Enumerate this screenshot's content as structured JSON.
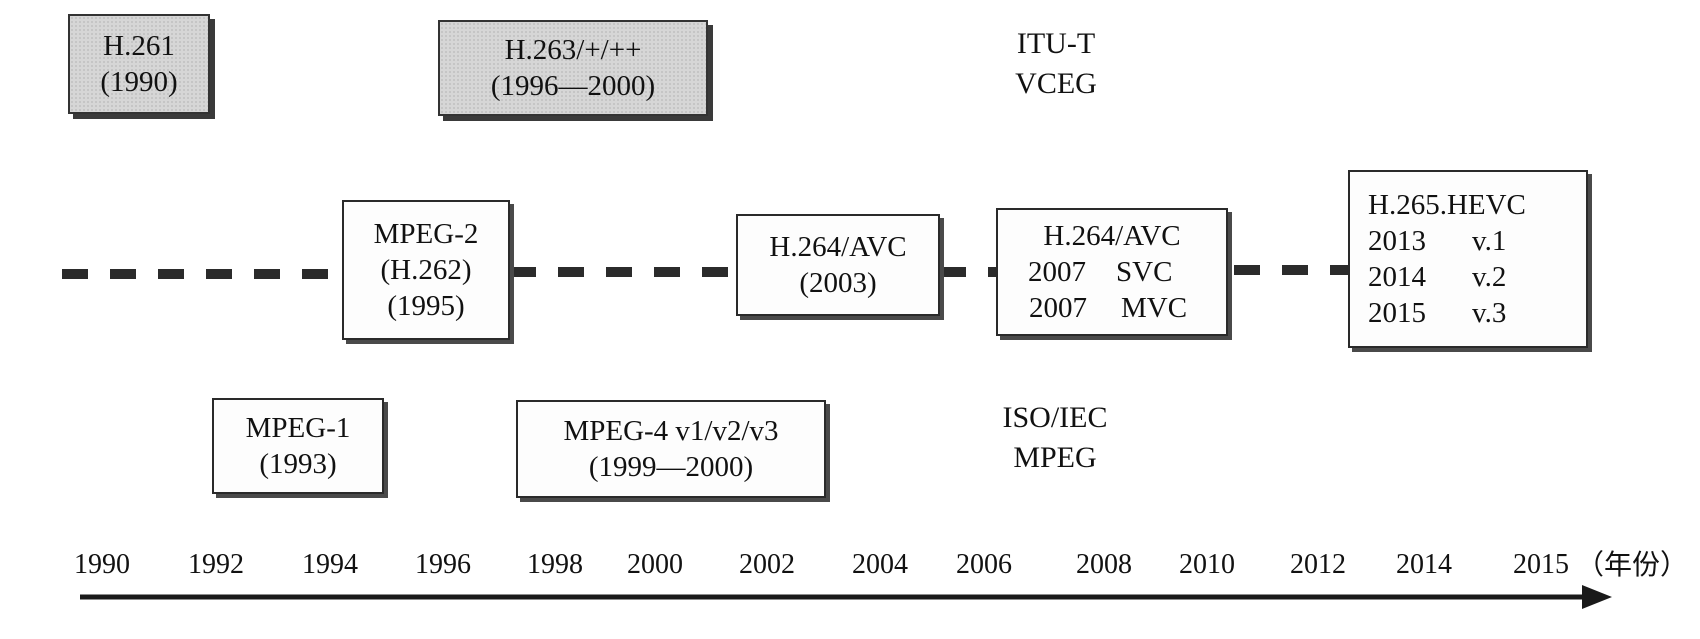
{
  "itu": {
    "line1": "ITU-T",
    "line2": "VCEG"
  },
  "iso": {
    "line1": "ISO/IEC",
    "line2": "MPEG"
  },
  "standards": {
    "h261": {
      "name": "H.261",
      "years": "(1990)"
    },
    "h263": {
      "name": "H.263/+/++",
      "years": "(1996—2000)"
    },
    "mpeg2": {
      "name": "MPEG-2",
      "alias": "(H.262)",
      "years": "(1995)"
    },
    "h264": {
      "name": "H.264/AVC",
      "years": "(2003)"
    },
    "h264ext": {
      "name": "H.264/AVC",
      "rows": [
        {
          "year": "2007",
          "label": "SVC"
        },
        {
          "year": "2007",
          "label": "MVC"
        }
      ]
    },
    "h265": {
      "name": "H.265.HEVC",
      "rows": [
        {
          "year": "2013",
          "label": "v.1"
        },
        {
          "year": "2014",
          "label": "v.2"
        },
        {
          "year": "2015",
          "label": "v.3"
        }
      ]
    },
    "mpeg1": {
      "name": "MPEG-1",
      "years": "(1993)"
    },
    "mpeg4": {
      "name": "MPEG-4 v1/v2/v3",
      "years": "(1999—2000)"
    }
  },
  "axis": {
    "ticks": [
      "1990",
      "1992",
      "1994",
      "1996",
      "1998",
      "2000",
      "2002",
      "2004",
      "2006",
      "2008",
      "2010",
      "2012",
      "2014",
      "2015"
    ],
    "unit": "（年份）"
  }
}
